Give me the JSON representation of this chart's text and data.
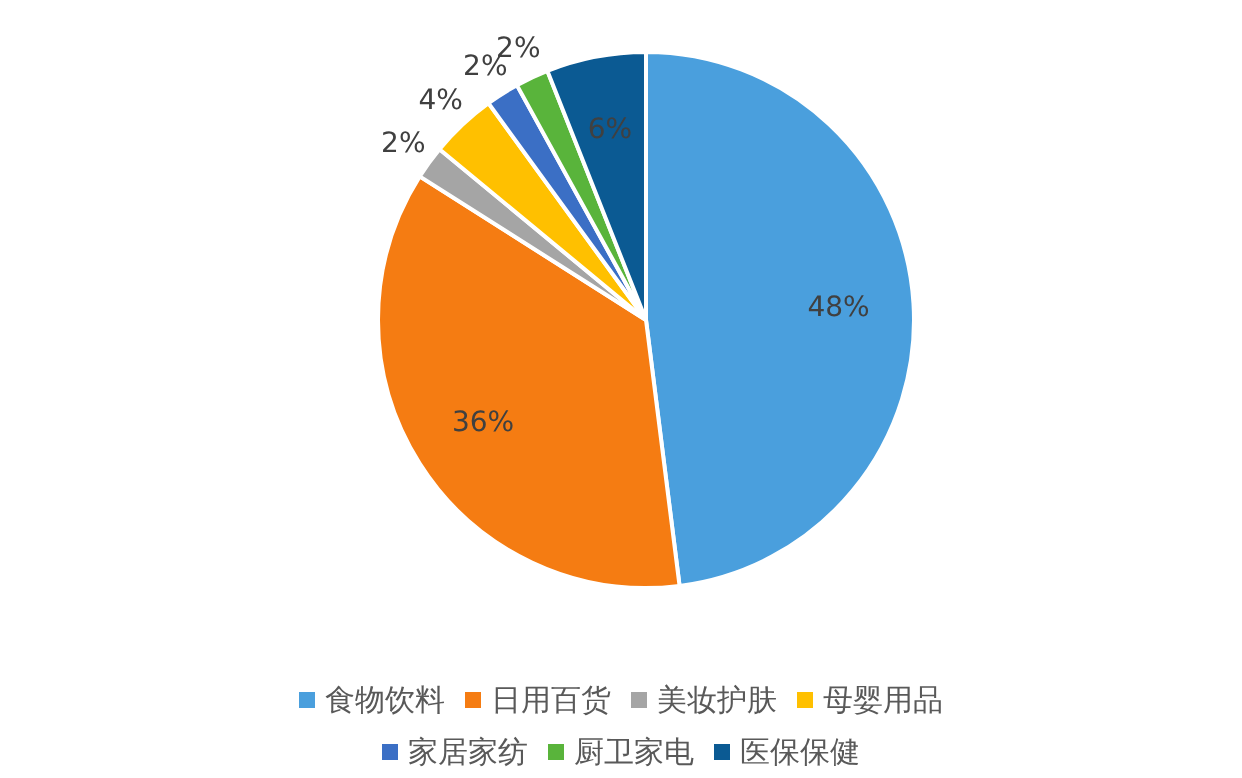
{
  "chart_data": {
    "type": "pie",
    "categories": [
      "食物饮料",
      "日用百货",
      "美妆护肤",
      "母婴用品",
      "家居家纺",
      "厨卫家电",
      "医保保健"
    ],
    "values": [
      48,
      36,
      2,
      4,
      2,
      2,
      6
    ],
    "colors": [
      "#4a9fdd",
      "#f57c12",
      "#a5a5a5",
      "#ffc000",
      "#3b6fc5",
      "#59b43b",
      "#0b5a93"
    ],
    "value_labels": [
      "48%",
      "36%",
      "2%",
      "4%",
      "2%",
      "2%",
      "6%"
    ],
    "legend": "bottom"
  }
}
